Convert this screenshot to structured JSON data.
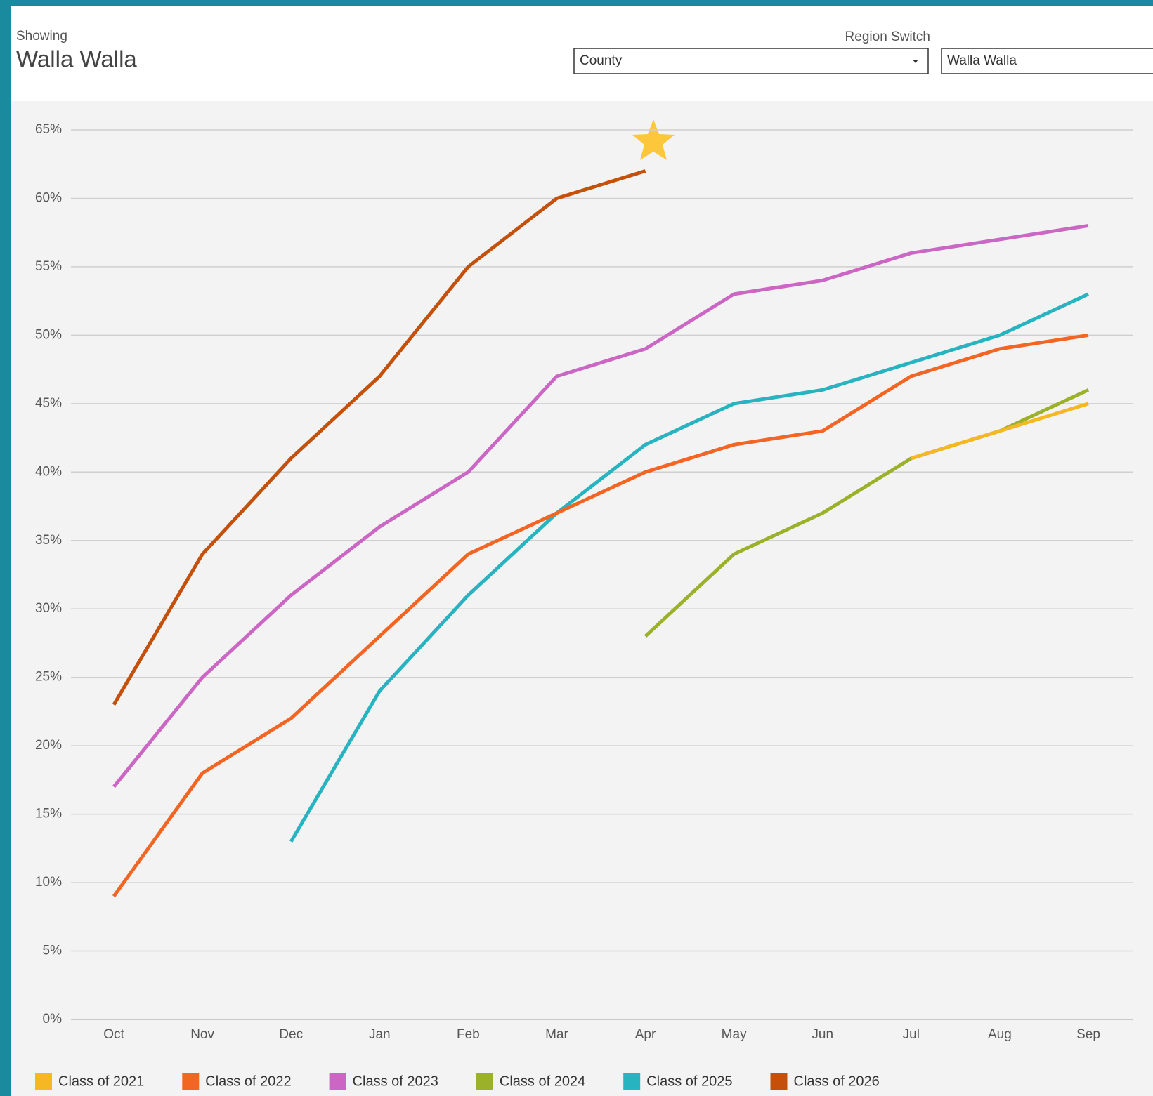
{
  "header": {
    "caption": "Showing",
    "title": "Walla Walla",
    "switch_label": "Region Switch",
    "region_type": "County",
    "region_name": "Walla Walla"
  },
  "chart_data": {
    "type": "line",
    "categories": [
      "Oct",
      "Nov",
      "Dec",
      "Jan",
      "Feb",
      "Mar",
      "Apr",
      "May",
      "Jun",
      "Jul",
      "Aug",
      "Sep"
    ],
    "series": [
      {
        "name": "Class of 2021",
        "color": "#f5b822",
        "values": [
          null,
          null,
          null,
          null,
          null,
          null,
          null,
          null,
          null,
          41,
          43,
          45
        ]
      },
      {
        "name": "Class of 2022",
        "color": "#f26522",
        "values": [
          9,
          18,
          22,
          28,
          34,
          37,
          40,
          42,
          43,
          47,
          49,
          50
        ]
      },
      {
        "name": "Class of 2023",
        "color": "#cc66c4",
        "values": [
          17,
          25,
          31,
          36,
          40,
          47,
          49,
          53,
          54,
          56,
          57,
          58
        ]
      },
      {
        "name": "Class of 2024",
        "color": "#9bb12a",
        "values": [
          null,
          null,
          null,
          null,
          null,
          null,
          28,
          34,
          37,
          41,
          43,
          46
        ]
      },
      {
        "name": "Class of 2025",
        "color": "#27b3c0",
        "values": [
          null,
          null,
          13,
          24,
          31,
          37,
          42,
          45,
          46,
          48,
          50,
          53
        ]
      },
      {
        "name": "Class of 2026",
        "color": "#c4500a",
        "values": [
          23,
          34,
          41,
          47,
          55,
          60,
          62,
          null,
          null,
          null,
          null,
          null
        ]
      }
    ],
    "ylim": [
      0,
      65
    ],
    "yticks": [
      {
        "value": 0,
        "label": "0%"
      },
      {
        "value": 5,
        "label": "5%"
      },
      {
        "value": 10,
        "label": "10%"
      },
      {
        "value": 15,
        "label": "15%"
      },
      {
        "value": 20,
        "label": "20%"
      },
      {
        "value": 25,
        "label": "25%"
      },
      {
        "value": 30,
        "label": "30%"
      },
      {
        "value": 35,
        "label": "35%"
      },
      {
        "value": 40,
        "label": "40%"
      },
      {
        "value": 45,
        "label": "45%"
      },
      {
        "value": 50,
        "label": "50%"
      },
      {
        "value": 55,
        "label": "55%"
      },
      {
        "value": 60,
        "label": "60%"
      },
      {
        "value": 65,
        "label": "65%"
      }
    ],
    "grid": true
  }
}
